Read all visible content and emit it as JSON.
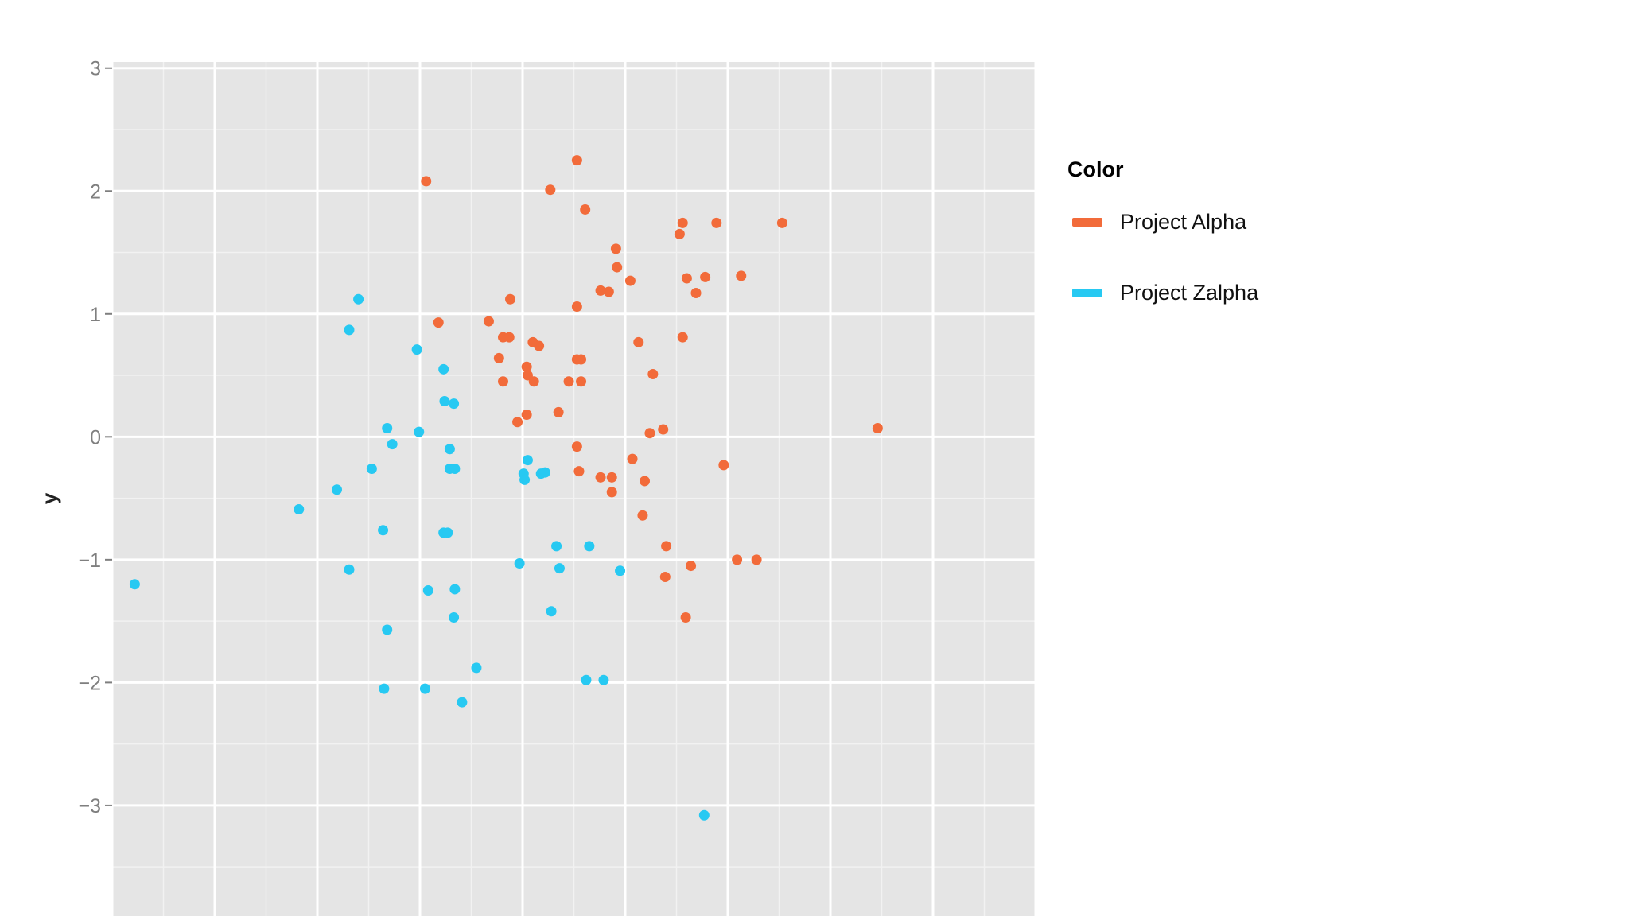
{
  "chart_data": {
    "type": "scatter",
    "title": "",
    "xlabel": "",
    "ylabel": "y",
    "xlim": [
      -4,
      5
    ],
    "ylim": [
      -3.9,
      3.05
    ],
    "y_ticks": [
      3,
      2,
      1,
      0,
      -1,
      -2,
      -3
    ],
    "y_tick_labels": [
      "3",
      "2",
      "1",
      "0",
      "−1",
      "−2",
      "−3"
    ],
    "grid": true,
    "legend": {
      "title": "Color",
      "position": "right"
    },
    "series": [
      {
        "name": "Project Alpha",
        "color": "#f26b3a",
        "points": [
          [
            -0.94,
            2.08
          ],
          [
            0.53,
            2.25
          ],
          [
            0.27,
            2.01
          ],
          [
            0.61,
            1.85
          ],
          [
            0.91,
            1.53
          ],
          [
            2.53,
            1.74
          ],
          [
            1.56,
            1.74
          ],
          [
            1.89,
            1.74
          ],
          [
            1.53,
            1.65
          ],
          [
            0.92,
            1.38
          ],
          [
            1.05,
            1.27
          ],
          [
            1.6,
            1.29
          ],
          [
            1.78,
            1.3
          ],
          [
            2.13,
            1.31
          ],
          [
            0.76,
            1.19
          ],
          [
            0.84,
            1.18
          ],
          [
            1.69,
            1.17
          ],
          [
            -0.12,
            1.12
          ],
          [
            0.53,
            1.06
          ],
          [
            -0.33,
            0.94
          ],
          [
            -0.19,
            0.81
          ],
          [
            -0.82,
            0.93
          ],
          [
            1.56,
            0.81
          ],
          [
            -0.13,
            0.81
          ],
          [
            1.13,
            0.77
          ],
          [
            0.1,
            0.77
          ],
          [
            0.16,
            0.74
          ],
          [
            0.53,
            0.63
          ],
          [
            0.57,
            0.63
          ],
          [
            -0.23,
            0.64
          ],
          [
            0.04,
            0.57
          ],
          [
            0.05,
            0.5
          ],
          [
            1.27,
            0.51
          ],
          [
            0.11,
            0.45
          ],
          [
            0.45,
            0.45
          ],
          [
            -0.19,
            0.45
          ],
          [
            0.57,
            0.45
          ],
          [
            0.35,
            0.2
          ],
          [
            0.04,
            0.18
          ],
          [
            -0.05,
            0.12
          ],
          [
            1.37,
            0.06
          ],
          [
            1.24,
            0.03
          ],
          [
            3.46,
            0.07
          ],
          [
            0.53,
            -0.08
          ],
          [
            0.55,
            -0.28
          ],
          [
            1.07,
            -0.18
          ],
          [
            1.96,
            -0.23
          ],
          [
            0.76,
            -0.33
          ],
          [
            0.87,
            -0.33
          ],
          [
            1.19,
            -0.36
          ],
          [
            0.87,
            -0.45
          ],
          [
            1.17,
            -0.64
          ],
          [
            1.4,
            -0.89
          ],
          [
            2.09,
            -1.0
          ],
          [
            2.28,
            -1.0
          ],
          [
            1.64,
            -1.05
          ],
          [
            1.39,
            -1.14
          ],
          [
            1.59,
            -1.47
          ]
        ]
      },
      {
        "name": "Project Zalpha",
        "color": "#27c9f2",
        "points": [
          [
            -1.6,
            1.12
          ],
          [
            -1.69,
            0.87
          ],
          [
            -1.03,
            0.71
          ],
          [
            -0.77,
            0.55
          ],
          [
            -0.76,
            0.29
          ],
          [
            -0.67,
            0.27
          ],
          [
            -1.32,
            0.07
          ],
          [
            -1.01,
            0.04
          ],
          [
            -1.27,
            -0.06
          ],
          [
            -0.71,
            -0.1
          ],
          [
            0.05,
            -0.19
          ],
          [
            -1.47,
            -0.26
          ],
          [
            -0.71,
            -0.26
          ],
          [
            -0.66,
            -0.26
          ],
          [
            0.01,
            -0.3
          ],
          [
            0.02,
            -0.35
          ],
          [
            0.18,
            -0.3
          ],
          [
            0.22,
            -0.29
          ],
          [
            -1.81,
            -0.43
          ],
          [
            -2.18,
            -0.59
          ],
          [
            -1.36,
            -0.76
          ],
          [
            -0.77,
            -0.78
          ],
          [
            -0.73,
            -0.78
          ],
          [
            0.33,
            -0.89
          ],
          [
            0.65,
            -0.89
          ],
          [
            -0.03,
            -1.03
          ],
          [
            -1.69,
            -1.08
          ],
          [
            0.36,
            -1.07
          ],
          [
            0.95,
            -1.09
          ],
          [
            -3.78,
            -1.2
          ],
          [
            -0.92,
            -1.25
          ],
          [
            -0.66,
            -1.24
          ],
          [
            -0.67,
            -1.47
          ],
          [
            0.28,
            -1.42
          ],
          [
            -1.32,
            -1.57
          ],
          [
            -0.45,
            -1.88
          ],
          [
            0.62,
            -1.98
          ],
          [
            0.79,
            -1.98
          ],
          [
            -1.35,
            -2.05
          ],
          [
            -0.95,
            -2.05
          ],
          [
            -0.59,
            -2.16
          ],
          [
            1.77,
            -3.08
          ]
        ]
      }
    ]
  }
}
